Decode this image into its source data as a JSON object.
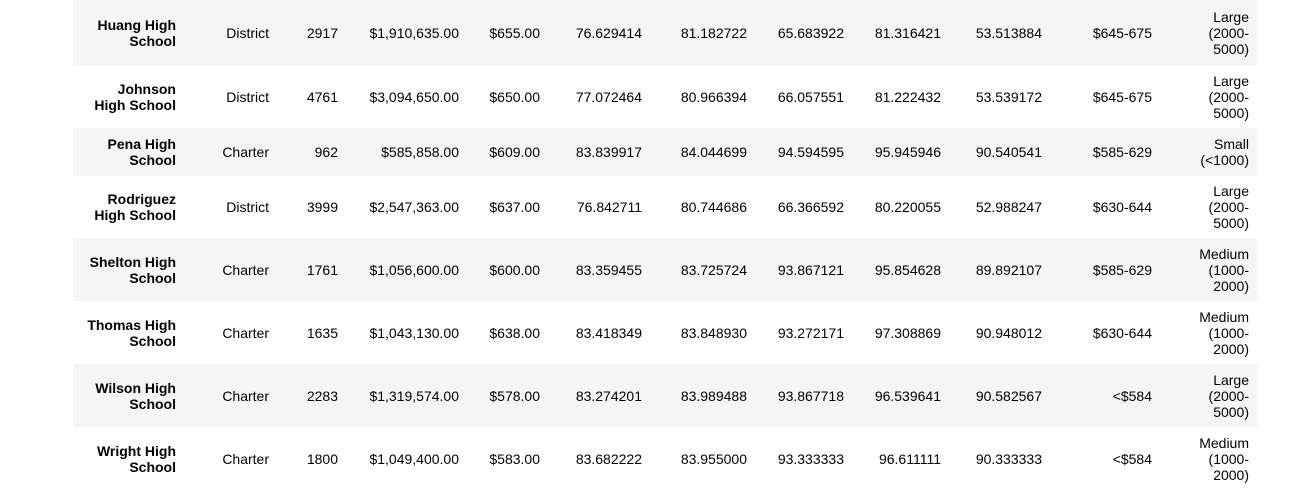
{
  "table": {
    "rows": [
      {
        "school": "Huang High School",
        "school_lines": [
          "Huang High",
          "School"
        ],
        "type": "District",
        "total_students": "2917",
        "total_budget": "$1,910,635.00",
        "per_student_budget": "$655.00",
        "avg_math": "76.629414",
        "avg_reading": "81.182722",
        "pct_math": "65.683922",
        "pct_reading": "81.316421",
        "pct_overall": "53.513884",
        "spending_range": "$645-675",
        "size_lines": [
          "Large",
          "(2000-",
          "5000)"
        ]
      },
      {
        "school": "Johnson High School",
        "school_lines": [
          "Johnson",
          "High School"
        ],
        "type": "District",
        "total_students": "4761",
        "total_budget": "$3,094,650.00",
        "per_student_budget": "$650.00",
        "avg_math": "77.072464",
        "avg_reading": "80.966394",
        "pct_math": "66.057551",
        "pct_reading": "81.222432",
        "pct_overall": "53.539172",
        "spending_range": "$645-675",
        "size_lines": [
          "Large",
          "(2000-",
          "5000)"
        ]
      },
      {
        "school": "Pena High School",
        "school_lines": [
          "Pena High",
          "School"
        ],
        "type": "Charter",
        "total_students": "962",
        "total_budget": "$585,858.00",
        "per_student_budget": "$609.00",
        "avg_math": "83.839917",
        "avg_reading": "84.044699",
        "pct_math": "94.594595",
        "pct_reading": "95.945946",
        "pct_overall": "90.540541",
        "spending_range": "$585-629",
        "size_lines": [
          "Small",
          "(<1000)"
        ]
      },
      {
        "school": "Rodriguez High School",
        "school_lines": [
          "Rodriguez",
          "High School"
        ],
        "type": "District",
        "total_students": "3999",
        "total_budget": "$2,547,363.00",
        "per_student_budget": "$637.00",
        "avg_math": "76.842711",
        "avg_reading": "80.744686",
        "pct_math": "66.366592",
        "pct_reading": "80.220055",
        "pct_overall": "52.988247",
        "spending_range": "$630-644",
        "size_lines": [
          "Large",
          "(2000-",
          "5000)"
        ]
      },
      {
        "school": "Shelton High School",
        "school_lines": [
          "Shelton High",
          "School"
        ],
        "type": "Charter",
        "total_students": "1761",
        "total_budget": "$1,056,600.00",
        "per_student_budget": "$600.00",
        "avg_math": "83.359455",
        "avg_reading": "83.725724",
        "pct_math": "93.867121",
        "pct_reading": "95.854628",
        "pct_overall": "89.892107",
        "spending_range": "$585-629",
        "size_lines": [
          "Medium",
          "(1000-",
          "2000)"
        ]
      },
      {
        "school": "Thomas High School",
        "school_lines": [
          "Thomas High",
          "School"
        ],
        "type": "Charter",
        "total_students": "1635",
        "total_budget": "$1,043,130.00",
        "per_student_budget": "$638.00",
        "avg_math": "83.418349",
        "avg_reading": "83.848930",
        "pct_math": "93.272171",
        "pct_reading": "97.308869",
        "pct_overall": "90.948012",
        "spending_range": "$630-644",
        "size_lines": [
          "Medium",
          "(1000-",
          "2000)"
        ]
      },
      {
        "school": "Wilson High School",
        "school_lines": [
          "Wilson High",
          "School"
        ],
        "type": "Charter",
        "total_students": "2283",
        "total_budget": "$1,319,574.00",
        "per_student_budget": "$578.00",
        "avg_math": "83.274201",
        "avg_reading": "83.989488",
        "pct_math": "93.867718",
        "pct_reading": "96.539641",
        "pct_overall": "90.582567",
        "spending_range": "<$584",
        "size_lines": [
          "Large",
          "(2000-",
          "5000)"
        ]
      },
      {
        "school": "Wright High School",
        "school_lines": [
          "Wright High",
          "School"
        ],
        "type": "Charter",
        "total_students": "1800",
        "total_budget": "$1,049,400.00",
        "per_student_budget": "$583.00",
        "avg_math": "83.682222",
        "avg_reading": "83.955000",
        "pct_math": "93.333333",
        "pct_reading": "96.611111",
        "pct_overall": "90.333333",
        "spending_range": "<$584",
        "size_lines": [
          "Medium",
          "(1000-",
          "2000)"
        ]
      }
    ]
  }
}
